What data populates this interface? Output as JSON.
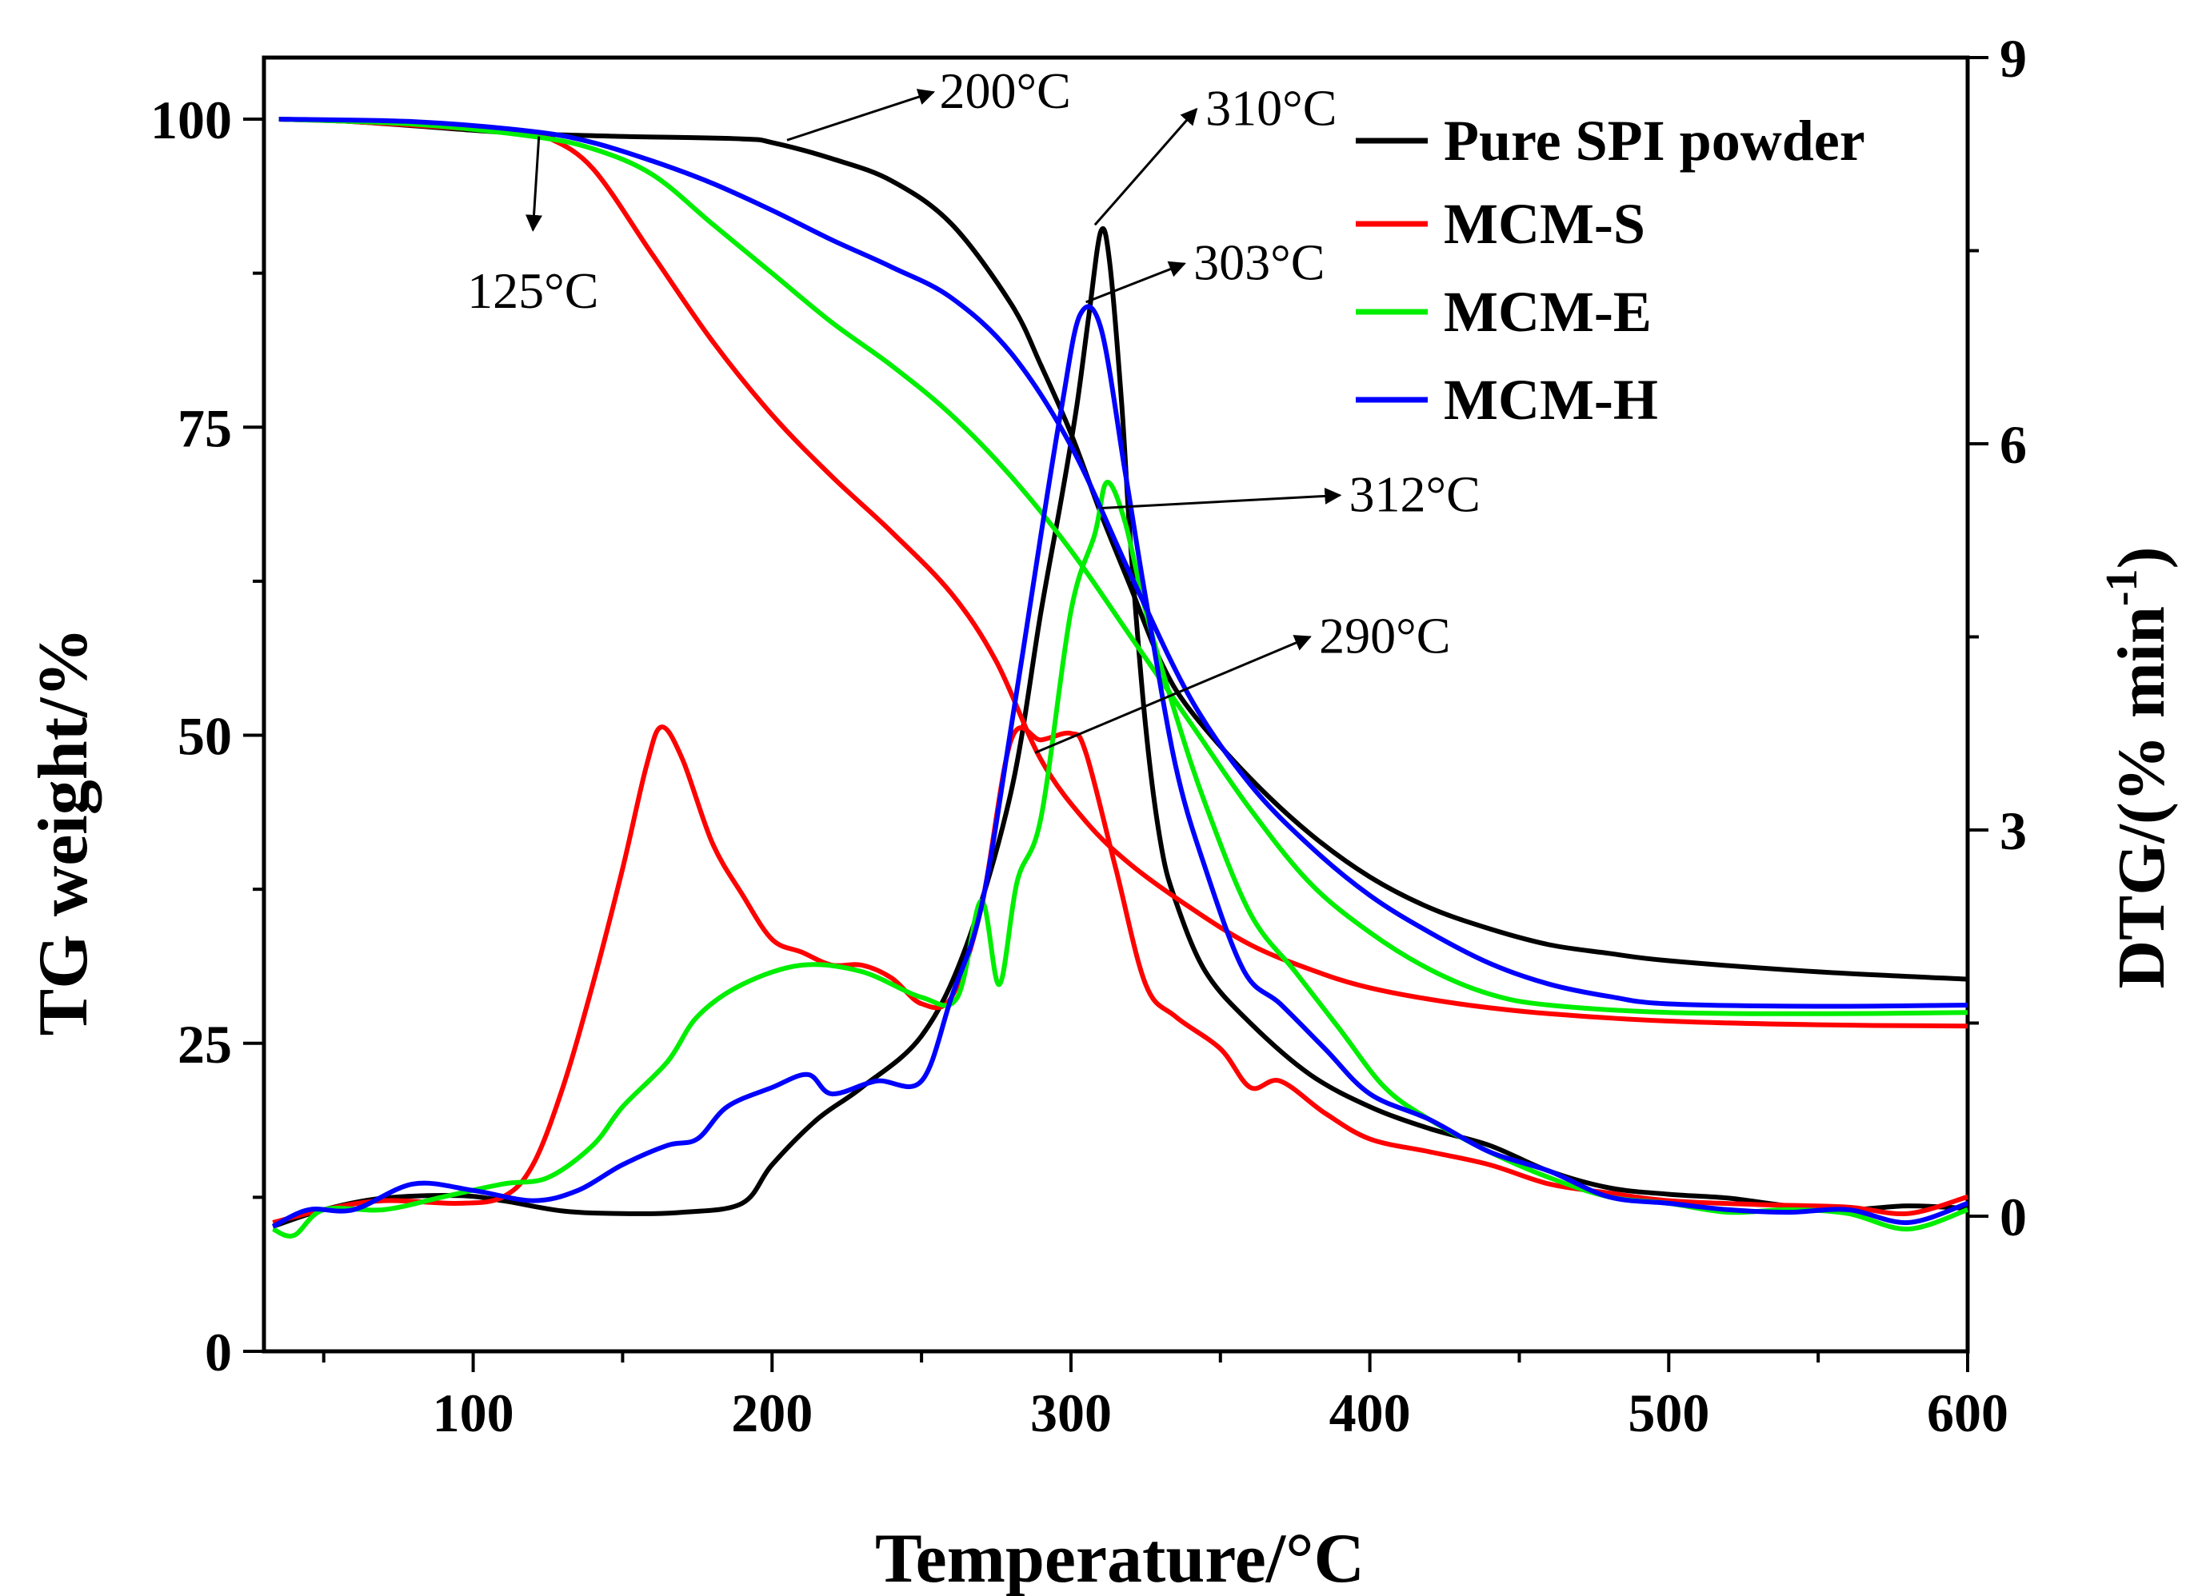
{
  "chart_data": {
    "type": "line",
    "xlabel": "Temperature/°C",
    "ylabel_left": "TG weight/%",
    "ylabel_right_main": "DTG/(% min",
    "ylabel_right_sup": "-1",
    "ylabel_right_close": ")",
    "xlim": [
      30,
      600
    ],
    "ylim_left": [
      0,
      105
    ],
    "ylim_right": [
      -1.05,
      9
    ],
    "x_ticks": [
      "100",
      "200",
      "300",
      "400",
      "500",
      "600"
    ],
    "x_tick_values": [
      100,
      200,
      300,
      400,
      500,
      600
    ],
    "y_left_ticks": [
      "0",
      "25",
      "50",
      "75",
      "100"
    ],
    "y_left_tick_values": [
      0,
      25,
      50,
      75,
      100
    ],
    "y_right_ticks": [
      "0",
      "3",
      "6",
      "9"
    ],
    "y_right_tick_values": [
      0,
      3,
      6,
      9
    ],
    "legend": [
      "Pure SPI powder",
      "MCM-S",
      "MCM-E",
      "MCM-H"
    ],
    "series": [
      {
        "name": "Pure SPI powder",
        "color": "#000000",
        "tg": [
          [
            35,
            100
          ],
          [
            60,
            99.8
          ],
          [
            100,
            99.1
          ],
          [
            120,
            98.8
          ],
          [
            150,
            98.6
          ],
          [
            190,
            98.4
          ],
          [
            200,
            98.1
          ],
          [
            220,
            96.8
          ],
          [
            240,
            95
          ],
          [
            260,
            91.5
          ],
          [
            280,
            85
          ],
          [
            290,
            80
          ],
          [
            300,
            74.5
          ],
          [
            310,
            68
          ],
          [
            320,
            62
          ],
          [
            330,
            56
          ],
          [
            340,
            52
          ],
          [
            360,
            46.5
          ],
          [
            380,
            42
          ],
          [
            400,
            38.5
          ],
          [
            420,
            36
          ],
          [
            440,
            34.3
          ],
          [
            460,
            33
          ],
          [
            480,
            32.3
          ],
          [
            500,
            31.7
          ],
          [
            550,
            30.8
          ],
          [
            600,
            30.2
          ]
        ],
        "dtg": [
          [
            33,
            -0.08
          ],
          [
            50,
            0.05
          ],
          [
            70,
            0.14
          ],
          [
            95,
            0.16
          ],
          [
            110,
            0.12
          ],
          [
            130,
            0.04
          ],
          [
            150,
            0.02
          ],
          [
            170,
            0.03
          ],
          [
            190,
            0.1
          ],
          [
            200,
            0.4
          ],
          [
            215,
            0.75
          ],
          [
            230,
            1.0
          ],
          [
            250,
            1.4
          ],
          [
            265,
            2.1
          ],
          [
            280,
            3.3
          ],
          [
            290,
            4.7
          ],
          [
            297,
            5.6
          ],
          [
            302,
            6.3
          ],
          [
            306,
            7.0
          ],
          [
            310,
            7.65
          ],
          [
            313,
            7.4
          ],
          [
            317,
            6.3
          ],
          [
            320,
            5.2
          ],
          [
            325,
            3.8
          ],
          [
            330,
            2.9
          ],
          [
            335,
            2.45
          ],
          [
            345,
            1.9
          ],
          [
            360,
            1.5
          ],
          [
            380,
            1.1
          ],
          [
            400,
            0.85
          ],
          [
            420,
            0.68
          ],
          [
            440,
            0.55
          ],
          [
            460,
            0.35
          ],
          [
            480,
            0.22
          ],
          [
            500,
            0.17
          ],
          [
            520,
            0.14
          ],
          [
            540,
            0.08
          ],
          [
            560,
            0.05
          ],
          [
            580,
            0.08
          ],
          [
            600,
            0.06
          ]
        ]
      },
      {
        "name": "MCM-S",
        "color": "#ff0000",
        "tg": [
          [
            35,
            100
          ],
          [
            60,
            99.8
          ],
          [
            100,
            99.2
          ],
          [
            115,
            98.9
          ],
          [
            125,
            98.5
          ],
          [
            140,
            96
          ],
          [
            160,
            89
          ],
          [
            180,
            82
          ],
          [
            200,
            76
          ],
          [
            220,
            71
          ],
          [
            240,
            66.5
          ],
          [
            260,
            61.5
          ],
          [
            275,
            56
          ],
          [
            290,
            48
          ],
          [
            305,
            43
          ],
          [
            320,
            39.5
          ],
          [
            340,
            36
          ],
          [
            360,
            33
          ],
          [
            380,
            31
          ],
          [
            400,
            29.5
          ],
          [
            430,
            28.2
          ],
          [
            460,
            27.4
          ],
          [
            500,
            26.8
          ],
          [
            550,
            26.5
          ],
          [
            600,
            26.4
          ]
        ],
        "dtg": [
          [
            33,
            -0.05
          ],
          [
            50,
            0.05
          ],
          [
            70,
            0.12
          ],
          [
            95,
            0.1
          ],
          [
            110,
            0.15
          ],
          [
            120,
            0.4
          ],
          [
            130,
            1.0
          ],
          [
            140,
            1.8
          ],
          [
            150,
            2.7
          ],
          [
            158,
            3.5
          ],
          [
            163,
            3.8
          ],
          [
            170,
            3.55
          ],
          [
            180,
            2.9
          ],
          [
            190,
            2.5
          ],
          [
            200,
            2.15
          ],
          [
            210,
            2.05
          ],
          [
            220,
            1.95
          ],
          [
            230,
            1.95
          ],
          [
            240,
            1.85
          ],
          [
            250,
            1.65
          ],
          [
            260,
            1.7
          ],
          [
            270,
            2.4
          ],
          [
            280,
            3.7
          ],
          [
            290,
            3.7
          ],
          [
            300,
            3.75
          ],
          [
            305,
            3.6
          ],
          [
            315,
            2.7
          ],
          [
            325,
            1.8
          ],
          [
            335,
            1.55
          ],
          [
            350,
            1.3
          ],
          [
            360,
            1.0
          ],
          [
            370,
            1.05
          ],
          [
            385,
            0.8
          ],
          [
            400,
            0.6
          ],
          [
            420,
            0.5
          ],
          [
            440,
            0.4
          ],
          [
            460,
            0.25
          ],
          [
            480,
            0.18
          ],
          [
            500,
            0.12
          ],
          [
            530,
            0.09
          ],
          [
            560,
            0.07
          ],
          [
            580,
            0.02
          ],
          [
            600,
            0.15
          ]
        ]
      },
      {
        "name": "MCM-E",
        "color": "#00ee00",
        "tg": [
          [
            35,
            100
          ],
          [
            80,
            99.6
          ],
          [
            120,
            98.6
          ],
          [
            140,
            97.6
          ],
          [
            160,
            95.5
          ],
          [
            180,
            91.5
          ],
          [
            200,
            87.5
          ],
          [
            220,
            83.5
          ],
          [
            240,
            80
          ],
          [
            260,
            76
          ],
          [
            280,
            71
          ],
          [
            300,
            65
          ],
          [
            320,
            58
          ],
          [
            340,
            51
          ],
          [
            360,
            44
          ],
          [
            380,
            38
          ],
          [
            400,
            34
          ],
          [
            420,
            31
          ],
          [
            440,
            29
          ],
          [
            460,
            28.1
          ],
          [
            500,
            27.5
          ],
          [
            550,
            27.4
          ],
          [
            600,
            27.5
          ]
        ],
        "dtg": [
          [
            33,
            -0.1
          ],
          [
            40,
            -0.15
          ],
          [
            50,
            0.05
          ],
          [
            70,
            0.05
          ],
          [
            90,
            0.15
          ],
          [
            110,
            0.25
          ],
          [
            125,
            0.3
          ],
          [
            140,
            0.55
          ],
          [
            150,
            0.85
          ],
          [
            165,
            1.2
          ],
          [
            175,
            1.55
          ],
          [
            190,
            1.8
          ],
          [
            210,
            1.95
          ],
          [
            230,
            1.9
          ],
          [
            250,
            1.7
          ],
          [
            262,
            1.7
          ],
          [
            270,
            2.45
          ],
          [
            276,
            1.8
          ],
          [
            282,
            2.6
          ],
          [
            290,
            3.1
          ],
          [
            300,
            4.7
          ],
          [
            308,
            5.3
          ],
          [
            312,
            5.7
          ],
          [
            318,
            5.4
          ],
          [
            325,
            4.7
          ],
          [
            335,
            3.9
          ],
          [
            345,
            3.2
          ],
          [
            360,
            2.35
          ],
          [
            375,
            1.9
          ],
          [
            390,
            1.45
          ],
          [
            405,
            1.0
          ],
          [
            420,
            0.75
          ],
          [
            440,
            0.5
          ],
          [
            460,
            0.3
          ],
          [
            480,
            0.15
          ],
          [
            500,
            0.1
          ],
          [
            520,
            0.03
          ],
          [
            540,
            0.05
          ],
          [
            560,
            0.02
          ],
          [
            580,
            -0.1
          ],
          [
            600,
            0.05
          ]
        ]
      },
      {
        "name": "MCM-H",
        "color": "#0000ff",
        "tg": [
          [
            35,
            100
          ],
          [
            80,
            99.8
          ],
          [
            120,
            99
          ],
          [
            140,
            98.1
          ],
          [
            160,
            96.6
          ],
          [
            180,
            94.8
          ],
          [
            200,
            92.6
          ],
          [
            220,
            90.2
          ],
          [
            240,
            88
          ],
          [
            260,
            85.5
          ],
          [
            280,
            81
          ],
          [
            300,
            73.5
          ],
          [
            320,
            63
          ],
          [
            340,
            53
          ],
          [
            360,
            46
          ],
          [
            380,
            41
          ],
          [
            400,
            37
          ],
          [
            420,
            34
          ],
          [
            440,
            31.5
          ],
          [
            460,
            29.8
          ],
          [
            480,
            28.8
          ],
          [
            500,
            28.2
          ],
          [
            550,
            28
          ],
          [
            600,
            28.1
          ]
        ],
        "dtg": [
          [
            33,
            -0.08
          ],
          [
            45,
            0.05
          ],
          [
            60,
            0.05
          ],
          [
            80,
            0.25
          ],
          [
            100,
            0.2
          ],
          [
            120,
            0.12
          ],
          [
            135,
            0.2
          ],
          [
            150,
            0.4
          ],
          [
            165,
            0.55
          ],
          [
            175,
            0.6
          ],
          [
            185,
            0.85
          ],
          [
            200,
            1.0
          ],
          [
            212,
            1.1
          ],
          [
            220,
            0.95
          ],
          [
            235,
            1.05
          ],
          [
            250,
            1.05
          ],
          [
            260,
            1.7
          ],
          [
            270,
            2.4
          ],
          [
            280,
            3.8
          ],
          [
            290,
            5.3
          ],
          [
            297,
            6.3
          ],
          [
            303,
            7.0
          ],
          [
            310,
            6.9
          ],
          [
            318,
            5.8
          ],
          [
            325,
            4.8
          ],
          [
            335,
            3.5
          ],
          [
            345,
            2.7
          ],
          [
            358,
            1.9
          ],
          [
            370,
            1.65
          ],
          [
            385,
            1.3
          ],
          [
            400,
            0.95
          ],
          [
            420,
            0.75
          ],
          [
            440,
            0.5
          ],
          [
            460,
            0.35
          ],
          [
            480,
            0.15
          ],
          [
            500,
            0.1
          ],
          [
            520,
            0.05
          ],
          [
            540,
            0.03
          ],
          [
            560,
            0.05
          ],
          [
            580,
            -0.05
          ],
          [
            600,
            0.1
          ]
        ]
      }
    ],
    "annotations": [
      {
        "text": "200°C",
        "axis": "left",
        "from": [
          205,
          98.3
        ],
        "to": [
          254,
          102.2
        ],
        "label_at": [
          256,
          102.2
        ],
        "anchor": "start"
      },
      {
        "text": "125°C",
        "axis": "left",
        "from": [
          122,
          98.6
        ],
        "to": [
          120,
          91
        ],
        "label_at": [
          120,
          86
        ],
        "anchor": "middle"
      },
      {
        "text": "310°C",
        "axis": "right",
        "from": [
          308,
          7.7
        ],
        "to": [
          342,
          8.6
        ],
        "label_at": [
          345,
          8.6
        ],
        "anchor": "start"
      },
      {
        "text": "303°C",
        "axis": "right",
        "from": [
          305,
          7.1
        ],
        "to": [
          338,
          7.4
        ],
        "label_at": [
          341,
          7.4
        ],
        "anchor": "start"
      },
      {
        "text": "312°C",
        "axis": "right",
        "from": [
          310,
          5.5
        ],
        "to": [
          390,
          5.6
        ],
        "label_at": [
          393,
          5.6
        ],
        "anchor": "start"
      },
      {
        "text": "290°C",
        "axis": "right",
        "from": [
          288,
          3.6
        ],
        "to": [
          380,
          4.5
        ],
        "label_at": [
          383,
          4.5
        ],
        "anchor": "start"
      }
    ]
  }
}
